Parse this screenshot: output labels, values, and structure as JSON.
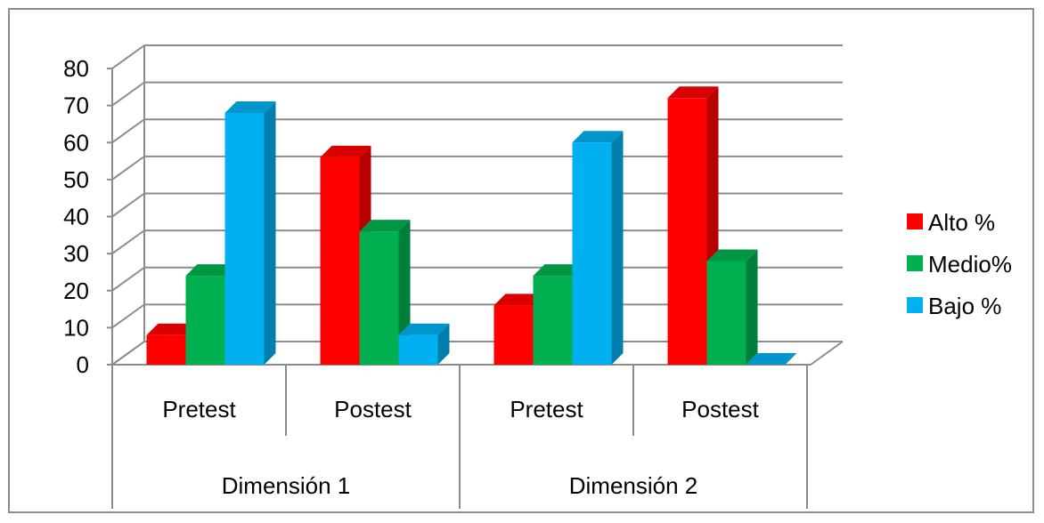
{
  "chart_data": {
    "type": "bar",
    "categories": [
      "Pretest",
      "Postest",
      "Pretest",
      "Postest"
    ],
    "groups": [
      {
        "label": "Dimensión 1",
        "categories": [
          "Pretest",
          "Postest"
        ]
      },
      {
        "label": "Dimensión 2",
        "categories": [
          "Pretest",
          "Postest"
        ]
      }
    ],
    "series": [
      {
        "name": "Alto %",
        "color": "#ff0000",
        "values": [
          8,
          56,
          16,
          72
        ]
      },
      {
        "name": "Medio%",
        "color": "#00b050",
        "values": [
          24,
          36,
          24,
          28
        ]
      },
      {
        "name": "Bajo %",
        "color": "#00b0f0",
        "values": [
          68,
          8,
          60,
          0
        ]
      }
    ],
    "ylim": [
      0,
      80
    ],
    "yticks": [
      0,
      10,
      20,
      30,
      40,
      50,
      60,
      70,
      80
    ],
    "grid": true,
    "legend": "right",
    "style": "3d-clustered-column"
  }
}
